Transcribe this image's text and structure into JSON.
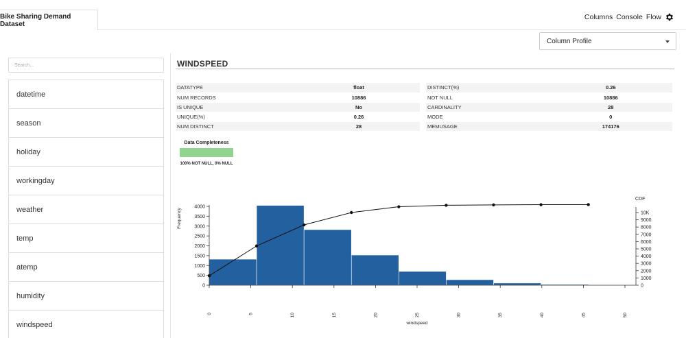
{
  "tab": {
    "label": "Bike Sharing Demand Dataset"
  },
  "nav": {
    "columns": "Columns",
    "console": "Console",
    "flow": "Flow"
  },
  "dropdown": {
    "selected": "Column Profile"
  },
  "search": {
    "placeholder": "Search..."
  },
  "columns": [
    "datetime",
    "season",
    "holiday",
    "workingday",
    "weather",
    "temp",
    "atemp",
    "humidity",
    "windspeed"
  ],
  "profile": {
    "title": "WINDSPEED",
    "left_stats": [
      {
        "key": "DATATYPE",
        "value": "float"
      },
      {
        "key": "NUM RECORDS",
        "value": "10886"
      },
      {
        "key": "IS UNIQUE",
        "value": "No"
      },
      {
        "key": "UNIQUE(%)",
        "value": "0.26"
      },
      {
        "key": "NUM DISTINCT",
        "value": "28"
      }
    ],
    "right_stats": [
      {
        "key": "DISTINCT(%)",
        "value": "0.26"
      },
      {
        "key": "NOT NULL",
        "value": "10886"
      },
      {
        "key": "CARDINALITY",
        "value": "28"
      },
      {
        "key": "MODE",
        "value": "0"
      },
      {
        "key": "MEMUSAGE",
        "value": "174176"
      }
    ],
    "completeness": {
      "title": "Data Completeness",
      "text": "100% NOT NULL, 0% NULL",
      "not_null_fraction": 1.0,
      "color": "#90d490"
    }
  },
  "chart_data": {
    "type": "bar",
    "xlabel": "windspeed",
    "ylabel": "Frequency",
    "y2label": "CDF",
    "xlim": [
      0,
      50
    ],
    "ylim": [
      0,
      4000
    ],
    "y2lim": [
      0,
      11000
    ],
    "x_ticks": [
      "0",
      "5",
      "10",
      "15",
      "20",
      "25",
      "30",
      "35",
      "40",
      "45",
      "50"
    ],
    "y_ticks": [
      "0",
      "500",
      "1000",
      "1500",
      "2000",
      "2500",
      "3000",
      "3500",
      "4000"
    ],
    "y2_ticks": [
      "0",
      "1000",
      "2000",
      "3000",
      "4000",
      "5000",
      "6000",
      "7000",
      "8000",
      "9000",
      "10K"
    ],
    "bins": [
      {
        "x0": 0,
        "x1": 5.7,
        "value": 1320
      },
      {
        "x0": 5.7,
        "x1": 11.4,
        "value": 4050
      },
      {
        "x0": 11.4,
        "x1": 17.1,
        "value": 2820
      },
      {
        "x0": 17.1,
        "x1": 22.8,
        "value": 1530
      },
      {
        "x0": 22.8,
        "x1": 28.5,
        "value": 700
      },
      {
        "x0": 28.5,
        "x1": 34.2,
        "value": 280
      },
      {
        "x0": 34.2,
        "x1": 39.9,
        "value": 110
      },
      {
        "x0": 39.9,
        "x1": 45.6,
        "value": 40
      },
      {
        "x0": 45.6,
        "x1": 51.3,
        "value": 10
      }
    ],
    "cdf": {
      "x": [
        0,
        5.7,
        11.4,
        17.1,
        22.8,
        28.5,
        34.2,
        39.9,
        45.6
      ],
      "y": [
        1300,
        5400,
        8300,
        10000,
        10800,
        11000,
        11050,
        11080,
        11090
      ]
    },
    "bar_color": "#2260a0",
    "line_color": "#111111"
  }
}
